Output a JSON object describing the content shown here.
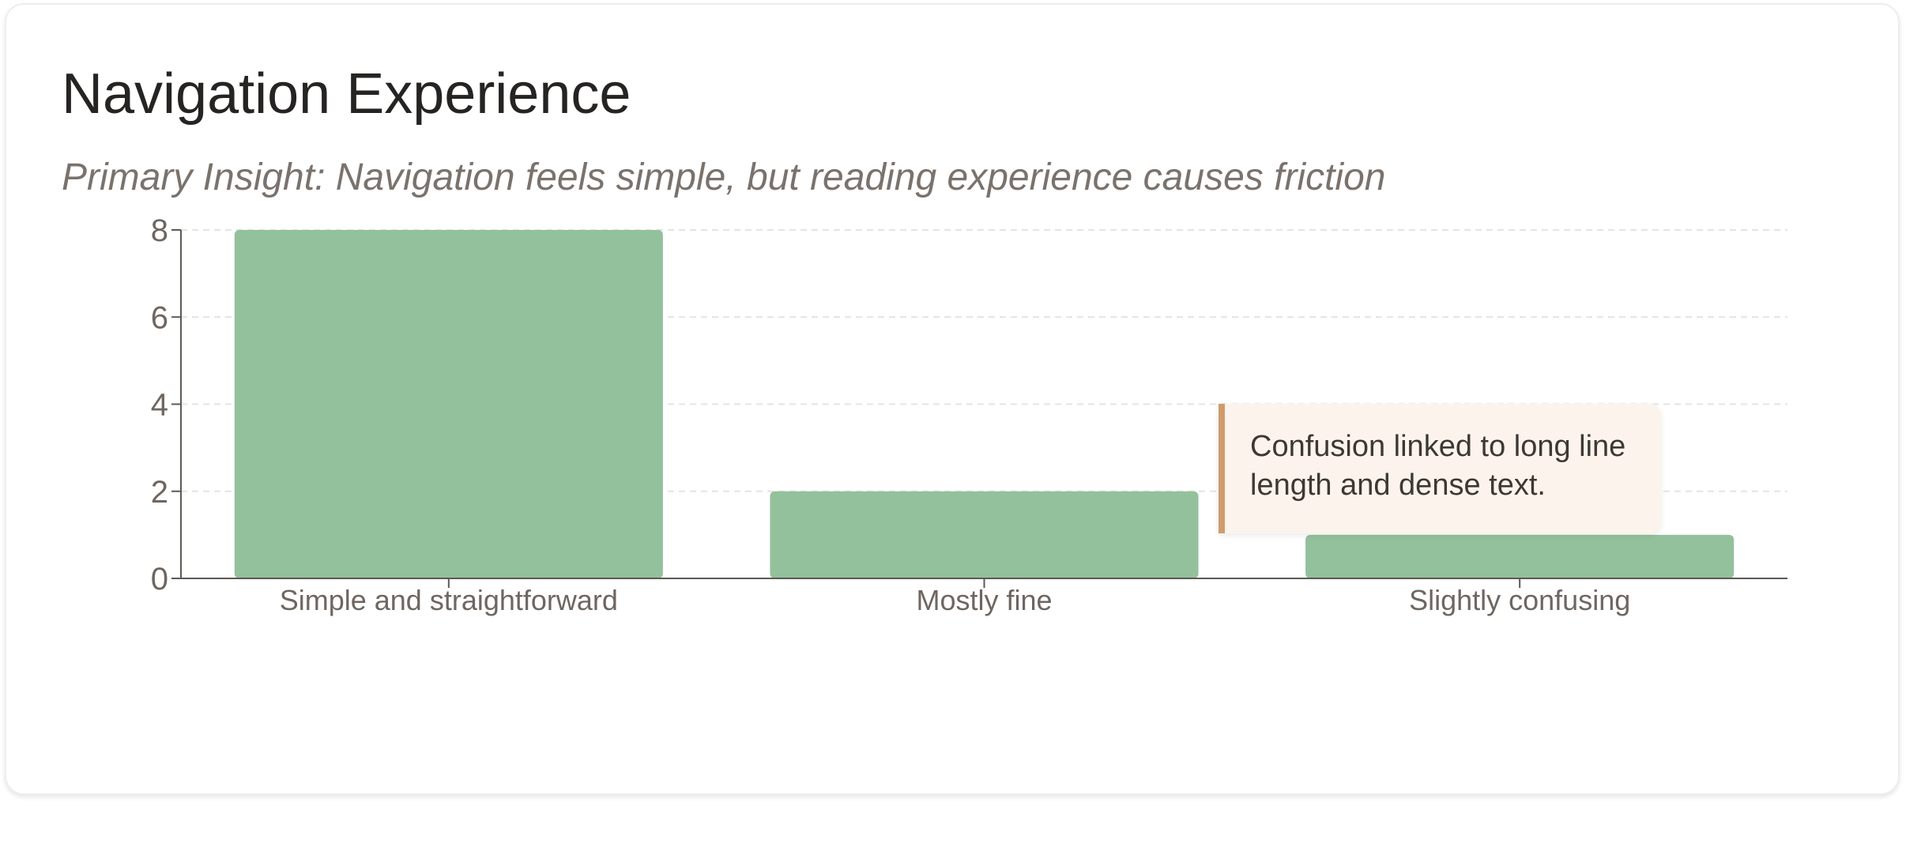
{
  "header": {
    "title": "Navigation Experience",
    "subtitle": "Primary Insight: Navigation feels simple, but reading experience causes friction"
  },
  "annotation": {
    "text": "Confusion linked to long line length and dense text."
  },
  "colors": {
    "bar": "#93c19c",
    "axis": "#5e5955",
    "tick_label": "#6e6660",
    "grid": "#e4e4e2",
    "annotation_bg": "#fcf4ec",
    "annotation_accent": "#d09b6c"
  },
  "chart_data": {
    "type": "bar",
    "categories": [
      "Simple and straightforward",
      "Mostly fine",
      "Slightly confusing"
    ],
    "values": [
      8,
      2,
      1
    ],
    "xlabel": "",
    "ylabel": "",
    "ylim": [
      0,
      8
    ],
    "yticks": [
      0,
      2,
      4,
      6,
      8
    ],
    "grid": true,
    "legend": "none"
  }
}
